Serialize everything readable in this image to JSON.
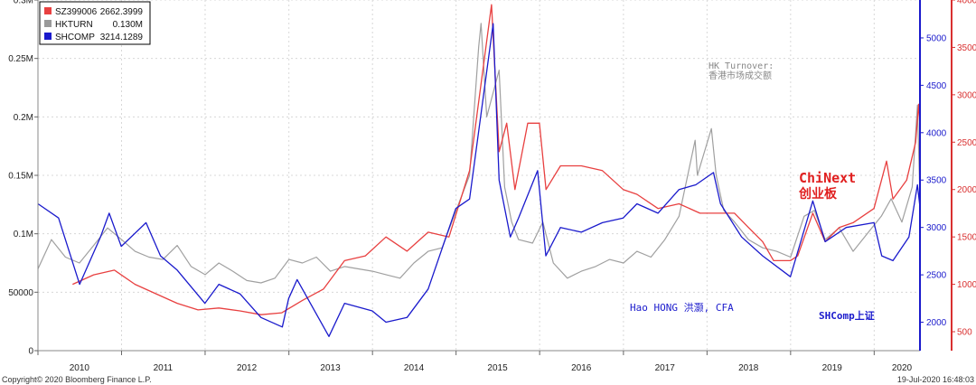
{
  "chart_data": {
    "type": "line",
    "x_start": "2010-01-01",
    "x_end": "2020-07-19",
    "x_tick_labels": [
      "2010",
      "2011",
      "2012",
      "2013",
      "2014",
      "2015",
      "2016",
      "2017",
      "2018",
      "2019",
      "2020"
    ],
    "left_axis": {
      "ylim": [
        0,
        300000
      ],
      "tick_labels": [
        "0",
        "50000",
        "0.1M",
        "0.15M",
        "0.2M",
        "0.25M",
        "0.3M"
      ],
      "tick_values": [
        0,
        50000,
        100000,
        150000,
        200000,
        250000,
        300000
      ]
    },
    "right_axis_shcomp": {
      "ylim": [
        1700,
        5400
      ],
      "tick_labels": [
        "2000",
        "2500",
        "3000",
        "3500",
        "4000",
        "4500",
        "5000"
      ],
      "tick_values": [
        2000,
        2500,
        3000,
        3500,
        4000,
        4500,
        5000
      ],
      "color": "#1f1fcc"
    },
    "right_axis_chinext": {
      "ylim": [
        300,
        4000
      ],
      "tick_labels": [
        "500",
        "1000",
        "1500",
        "2000",
        "2500",
        "3000",
        "3500",
        "4000"
      ],
      "tick_values": [
        500,
        1000,
        1500,
        2000,
        2500,
        3000,
        3500,
        4000
      ],
      "color": "#d93030"
    },
    "legend": [
      {
        "ticker": "SZ399006",
        "value": "2662.3999",
        "color": "#e84040"
      },
      {
        "ticker": "HKTURN",
        "value": "0.130M",
        "color": "#9a9a9a"
      },
      {
        "ticker": "SHCOMP",
        "value": "3214.1289",
        "color": "#1a1acc"
      }
    ],
    "series": [
      {
        "name": "HKTURN",
        "axis": "left",
        "color": "#a0a0a0",
        "points": [
          [
            "2010-01-01",
            70000
          ],
          [
            "2010-03-01",
            95000
          ],
          [
            "2010-05-01",
            80000
          ],
          [
            "2010-07-01",
            75000
          ],
          [
            "2010-09-01",
            90000
          ],
          [
            "2010-11-01",
            105000
          ],
          [
            "2011-01-01",
            95000
          ],
          [
            "2011-03-01",
            85000
          ],
          [
            "2011-05-01",
            80000
          ],
          [
            "2011-07-01",
            78000
          ],
          [
            "2011-09-01",
            90000
          ],
          [
            "2011-11-01",
            72000
          ],
          [
            "2012-01-01",
            65000
          ],
          [
            "2012-03-01",
            75000
          ],
          [
            "2012-05-01",
            68000
          ],
          [
            "2012-07-01",
            60000
          ],
          [
            "2012-09-01",
            58000
          ],
          [
            "2012-11-01",
            62000
          ],
          [
            "2013-01-01",
            78000
          ],
          [
            "2013-03-01",
            75000
          ],
          [
            "2013-05-01",
            80000
          ],
          [
            "2013-07-01",
            68000
          ],
          [
            "2013-09-01",
            72000
          ],
          [
            "2013-11-01",
            70000
          ],
          [
            "2014-01-01",
            68000
          ],
          [
            "2014-03-01",
            65000
          ],
          [
            "2014-05-01",
            62000
          ],
          [
            "2014-07-01",
            75000
          ],
          [
            "2014-09-01",
            85000
          ],
          [
            "2014-11-01",
            88000
          ],
          [
            "2015-01-01",
            120000
          ],
          [
            "2015-03-01",
            150000
          ],
          [
            "2015-04-10",
            260000
          ],
          [
            "2015-04-20",
            280000
          ],
          [
            "2015-05-15",
            200000
          ],
          [
            "2015-07-08",
            240000
          ],
          [
            "2015-08-01",
            140000
          ],
          [
            "2015-09-01",
            110000
          ],
          [
            "2015-10-01",
            95000
          ],
          [
            "2015-12-01",
            92000
          ],
          [
            "2016-01-15",
            110000
          ],
          [
            "2016-03-01",
            75000
          ],
          [
            "2016-05-01",
            62000
          ],
          [
            "2016-07-01",
            68000
          ],
          [
            "2016-09-01",
            72000
          ],
          [
            "2016-11-01",
            78000
          ],
          [
            "2017-01-01",
            75000
          ],
          [
            "2017-03-01",
            85000
          ],
          [
            "2017-05-01",
            80000
          ],
          [
            "2017-07-01",
            95000
          ],
          [
            "2017-09-01",
            115000
          ],
          [
            "2017-11-10",
            180000
          ],
          [
            "2017-11-20",
            150000
          ],
          [
            "2018-01-20",
            190000
          ],
          [
            "2018-02-10",
            150000
          ],
          [
            "2018-03-15",
            120000
          ],
          [
            "2018-05-01",
            110000
          ],
          [
            "2018-07-01",
            95000
          ],
          [
            "2018-09-01",
            88000
          ],
          [
            "2018-11-01",
            85000
          ],
          [
            "2019-01-01",
            80000
          ],
          [
            "2019-03-01",
            115000
          ],
          [
            "2019-04-15",
            120000
          ],
          [
            "2019-06-01",
            95000
          ],
          [
            "2019-08-01",
            105000
          ],
          [
            "2019-10-01",
            85000
          ],
          [
            "2019-12-01",
            100000
          ],
          [
            "2020-02-01",
            115000
          ],
          [
            "2020-03-15",
            130000
          ],
          [
            "2020-05-01",
            110000
          ],
          [
            "2020-06-15",
            140000
          ],
          [
            "2020-07-08",
            210000
          ],
          [
            "2020-07-19",
            130000
          ]
        ]
      },
      {
        "name": "SZ399006",
        "axis": "right_chinext",
        "color": "#e84040",
        "points": [
          [
            "2010-06-01",
            1000
          ],
          [
            "2010-09-01",
            1100
          ],
          [
            "2010-12-01",
            1150
          ],
          [
            "2011-03-01",
            1000
          ],
          [
            "2011-06-01",
            900
          ],
          [
            "2011-09-01",
            800
          ],
          [
            "2011-12-01",
            730
          ],
          [
            "2012-03-01",
            750
          ],
          [
            "2012-06-01",
            720
          ],
          [
            "2012-09-01",
            680
          ],
          [
            "2012-12-01",
            700
          ],
          [
            "2013-03-01",
            830
          ],
          [
            "2013-06-01",
            950
          ],
          [
            "2013-09-01",
            1250
          ],
          [
            "2013-12-01",
            1300
          ],
          [
            "2014-03-01",
            1500
          ],
          [
            "2014-06-01",
            1350
          ],
          [
            "2014-09-01",
            1550
          ],
          [
            "2014-12-01",
            1500
          ],
          [
            "2015-03-01",
            2200
          ],
          [
            "2015-06-05",
            3950
          ],
          [
            "2015-07-08",
            2400
          ],
          [
            "2015-08-10",
            2700
          ],
          [
            "2015-09-15",
            2000
          ],
          [
            "2015-11-10",
            2700
          ],
          [
            "2015-12-31",
            2700
          ],
          [
            "2016-01-29",
            2000
          ],
          [
            "2016-04-01",
            2250
          ],
          [
            "2016-07-01",
            2250
          ],
          [
            "2016-10-01",
            2200
          ],
          [
            "2016-12-31",
            2000
          ],
          [
            "2017-03-01",
            1950
          ],
          [
            "2017-06-01",
            1800
          ],
          [
            "2017-09-01",
            1850
          ],
          [
            "2017-12-01",
            1750
          ],
          [
            "2018-02-01",
            1750
          ],
          [
            "2018-05-01",
            1750
          ],
          [
            "2018-07-01",
            1600
          ],
          [
            "2018-09-01",
            1450
          ],
          [
            "2018-10-19",
            1250
          ],
          [
            "2018-12-31",
            1250
          ],
          [
            "2019-02-01",
            1300
          ],
          [
            "2019-04-08",
            1750
          ],
          [
            "2019-06-01",
            1450
          ],
          [
            "2019-08-01",
            1600
          ],
          [
            "2019-10-01",
            1650
          ],
          [
            "2019-12-31",
            1800
          ],
          [
            "2020-02-24",
            2300
          ],
          [
            "2020-03-23",
            1900
          ],
          [
            "2020-05-22",
            2100
          ],
          [
            "2020-06-30",
            2500
          ],
          [
            "2020-07-13",
            2900
          ],
          [
            "2020-07-19",
            2662
          ]
        ]
      },
      {
        "name": "SHCOMP",
        "axis": "right_shcomp",
        "color": "#1a1acc",
        "points": [
          [
            "2010-01-01",
            3250
          ],
          [
            "2010-04-01",
            3100
          ],
          [
            "2010-07-02",
            2400
          ],
          [
            "2010-10-01",
            2900
          ],
          [
            "2010-11-08",
            3150
          ],
          [
            "2010-12-31",
            2800
          ],
          [
            "2011-04-18",
            3050
          ],
          [
            "2011-06-20",
            2700
          ],
          [
            "2011-09-01",
            2550
          ],
          [
            "2011-12-31",
            2200
          ],
          [
            "2012-03-01",
            2400
          ],
          [
            "2012-06-01",
            2300
          ],
          [
            "2012-09-01",
            2050
          ],
          [
            "2012-12-03",
            1950
          ],
          [
            "2012-12-31",
            2250
          ],
          [
            "2013-02-06",
            2450
          ],
          [
            "2013-06-25",
            1850
          ],
          [
            "2013-09-01",
            2200
          ],
          [
            "2013-12-31",
            2120
          ],
          [
            "2014-03-01",
            2000
          ],
          [
            "2014-06-01",
            2050
          ],
          [
            "2014-09-01",
            2350
          ],
          [
            "2014-12-31",
            3200
          ],
          [
            "2015-03-01",
            3300
          ],
          [
            "2015-06-12",
            5150
          ],
          [
            "2015-07-08",
            3500
          ],
          [
            "2015-08-26",
            2900
          ],
          [
            "2015-10-01",
            3100
          ],
          [
            "2015-12-23",
            3600
          ],
          [
            "2016-01-28",
            2700
          ],
          [
            "2016-04-01",
            3000
          ],
          [
            "2016-07-01",
            2950
          ],
          [
            "2016-10-01",
            3050
          ],
          [
            "2016-12-31",
            3100
          ],
          [
            "2017-03-01",
            3250
          ],
          [
            "2017-06-01",
            3150
          ],
          [
            "2017-09-01",
            3400
          ],
          [
            "2017-11-13",
            3450
          ],
          [
            "2018-01-29",
            3580
          ],
          [
            "2018-03-01",
            3250
          ],
          [
            "2018-06-01",
            2900
          ],
          [
            "2018-09-01",
            2700
          ],
          [
            "2018-12-31",
            2480
          ],
          [
            "2019-04-08",
            3280
          ],
          [
            "2019-06-01",
            2850
          ],
          [
            "2019-09-01",
            3000
          ],
          [
            "2019-12-31",
            3050
          ],
          [
            "2020-02-03",
            2700
          ],
          [
            "2020-03-23",
            2650
          ],
          [
            "2020-06-01",
            2900
          ],
          [
            "2020-07-08",
            3450
          ],
          [
            "2020-07-19",
            3214
          ]
        ]
      }
    ]
  },
  "annotations": {
    "hk_turnover_en": "HK Turnover:",
    "hk_turnover_cn": "香港市场成交额",
    "chinext_en": "ChiNext",
    "chinext_cn": "创业板",
    "author": "Hao HONG 洪灏, CFA",
    "shcomp": "SHComp上证"
  },
  "footer": {
    "copyright": "Copyright© 2020 Bloomberg Finance L.P.",
    "timestamp": "19-Jul-2020 16:48:03"
  }
}
